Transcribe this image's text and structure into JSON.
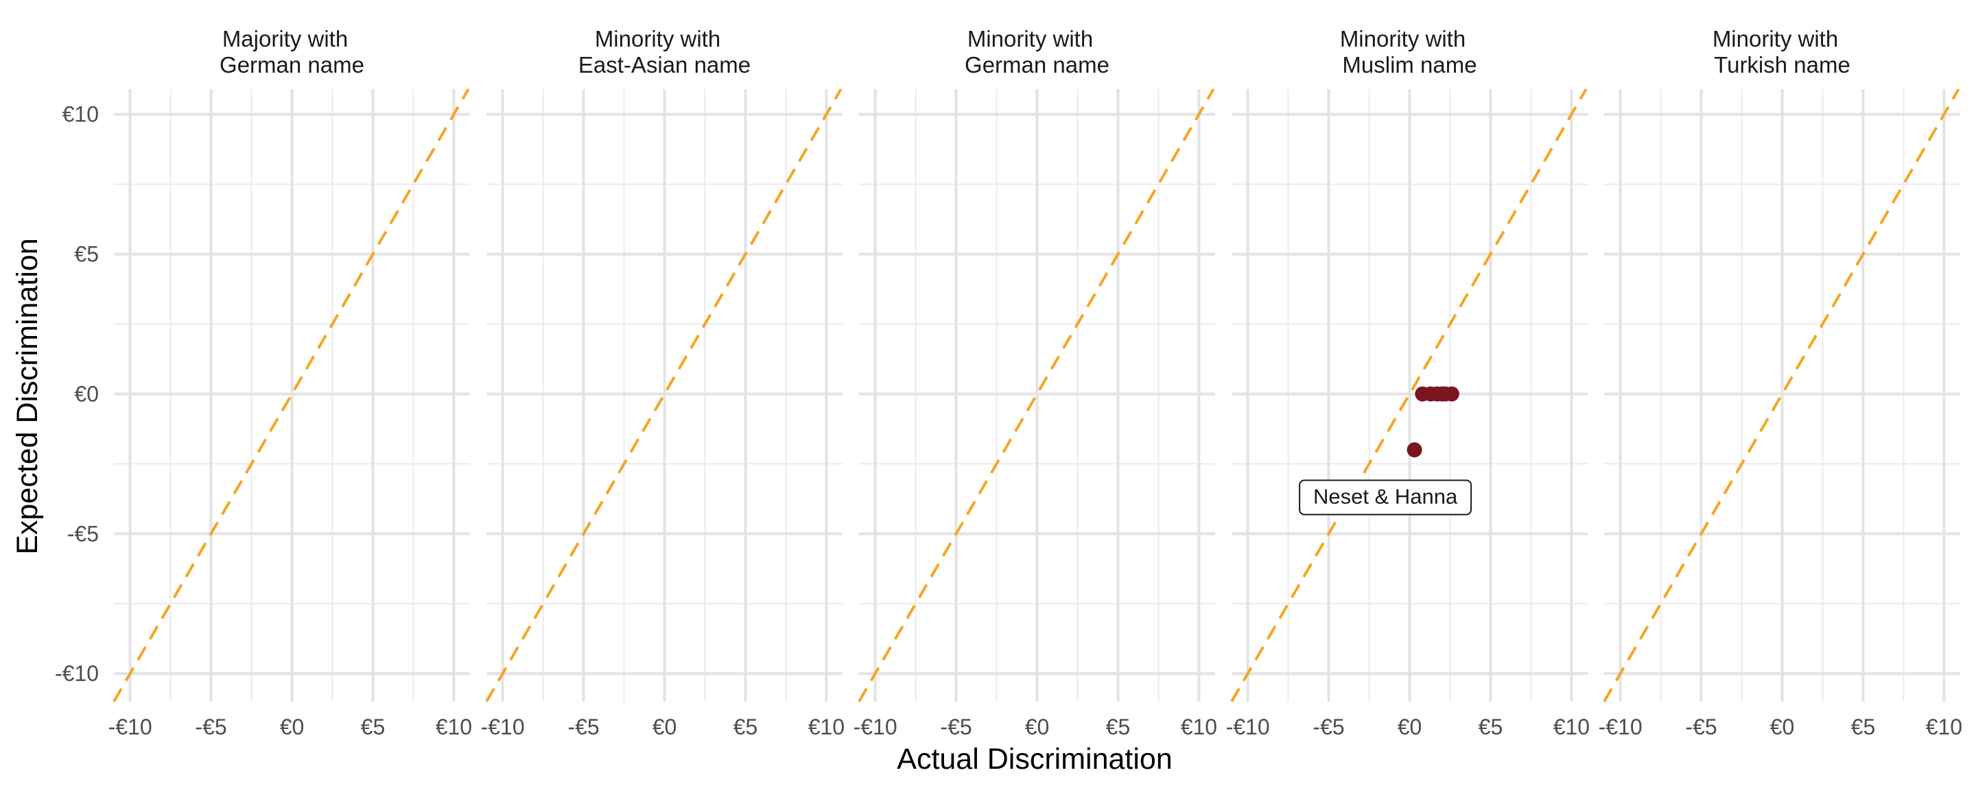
{
  "chart_data": {
    "type": "scatter",
    "xlabel": "Actual Discrimination",
    "ylabel": "Expected Discrimination",
    "xlim": [
      -11,
      11
    ],
    "ylim": [
      -11,
      10.9
    ],
    "ticks": [
      -10,
      -5,
      0,
      5,
      10
    ],
    "tick_labels": [
      "-€10",
      "-€5",
      "€0",
      "€5",
      "€10"
    ],
    "reference_line": {
      "type": "identity",
      "style": "dashed",
      "color": "#F5A623"
    },
    "point_color": "#7B1520",
    "grid": true,
    "panels": [
      {
        "title_line1": "Majority with",
        "title_line2": "German name",
        "points": []
      },
      {
        "title_line1": "Minority with",
        "title_line2": "East-Asian name",
        "points": []
      },
      {
        "title_line1": "Minority with",
        "title_line2": "German name",
        "points": []
      },
      {
        "title_line1": "Minority with",
        "title_line2": "Muslim name",
        "points": [
          {
            "x": 0.3,
            "y": -2.0
          },
          {
            "x": 0.8,
            "y": 0
          },
          {
            "x": 1.3,
            "y": 0
          },
          {
            "x": 1.7,
            "y": 0
          },
          {
            "x": 2.0,
            "y": 0
          },
          {
            "x": 2.2,
            "y": 0
          },
          {
            "x": 2.6,
            "y": 0
          }
        ],
        "annotation": {
          "text": "Neset & Hanna",
          "x": -1.5,
          "y": -3.7
        }
      },
      {
        "title_line1": "Minority with",
        "title_line2": "Turkish name",
        "points": []
      }
    ]
  }
}
